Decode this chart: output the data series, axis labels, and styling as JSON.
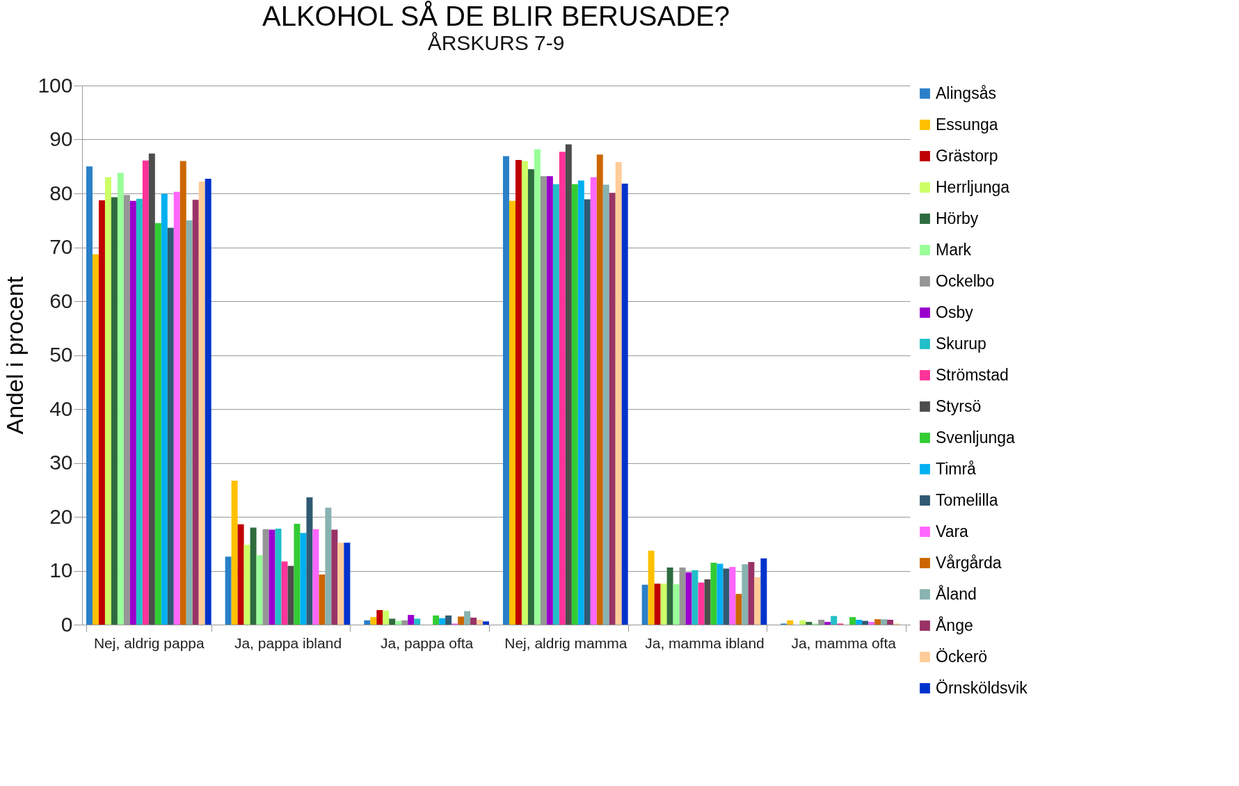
{
  "chart_data": {
    "type": "bar",
    "title": "ALKOHOL SÅ DE BLIR BERUSADE?",
    "subtitle": "ÅRSKURS 7-9",
    "ylabel": "Andel i procent",
    "categories": [
      "Nej, aldrig pappa",
      "Ja, pappa ibland",
      "Ja, pappa ofta",
      "Nej, aldrig mamma",
      "Ja, mamma ibland",
      "Ja, mamma ofta"
    ],
    "ylim": [
      0,
      100
    ],
    "yticks": [
      0,
      10,
      20,
      30,
      40,
      50,
      60,
      70,
      80,
      90,
      100
    ],
    "grid": "y",
    "legend": "right",
    "series": [
      {
        "name": "Alingsås",
        "color": "#2a80c8",
        "values": [
          85,
          12.6,
          0.8,
          86.9,
          7.4,
          0.2
        ]
      },
      {
        "name": "Essunga",
        "color": "#ffc000",
        "values": [
          68.7,
          26.7,
          1.4,
          78.6,
          13.7,
          0.8
        ]
      },
      {
        "name": "Grästorp",
        "color": "#c00000",
        "values": [
          78.7,
          18.6,
          2.7,
          86.2,
          7.6,
          0
        ]
      },
      {
        "name": "Herrljunga",
        "color": "#ccff66",
        "values": [
          83,
          14.8,
          2.6,
          86,
          7.6,
          0.8
        ]
      },
      {
        "name": "Hörby",
        "color": "#2e6b3e",
        "values": [
          79.3,
          18,
          1.1,
          84.5,
          10.6,
          0.5
        ]
      },
      {
        "name": "Mark",
        "color": "#99ff99",
        "values": [
          83.8,
          12.9,
          0.7,
          88.2,
          7.5,
          0.2
        ]
      },
      {
        "name": "Ockelbo",
        "color": "#969696",
        "values": [
          79.7,
          17.7,
          0.8,
          83.2,
          10.6,
          0.9
        ]
      },
      {
        "name": "Osby",
        "color": "#9900cc",
        "values": [
          78.6,
          17.6,
          1.8,
          83.2,
          9.7,
          0.5
        ]
      },
      {
        "name": "Skurup",
        "color": "#22bfc8",
        "values": [
          79,
          17.8,
          1.1,
          81.7,
          10.1,
          1.6
        ]
      },
      {
        "name": "Strömstad",
        "color": "#ff3399",
        "values": [
          86.1,
          11.7,
          0,
          87.7,
          7.8,
          0.2
        ]
      },
      {
        "name": "Styrsö",
        "color": "#4d4d4d",
        "values": [
          87.4,
          10.9,
          0,
          89.1,
          8.4,
          0
        ]
      },
      {
        "name": "Svenljunga",
        "color": "#33cc33",
        "values": [
          74.5,
          18.7,
          1.7,
          81.7,
          11.5,
          1.4
        ]
      },
      {
        "name": "Timrå",
        "color": "#00b0f0",
        "values": [
          79.9,
          17,
          1.2,
          82.4,
          11.3,
          0.9
        ]
      },
      {
        "name": "Tomelilla",
        "color": "#305a72",
        "values": [
          73.6,
          23.6,
          1.7,
          78.9,
          10.4,
          0.7
        ]
      },
      {
        "name": "Vara",
        "color": "#ff66ff",
        "values": [
          80.3,
          17.7,
          0.2,
          83,
          10.7,
          0.5
        ]
      },
      {
        "name": "Vårgårda",
        "color": "#cc6600",
        "values": [
          86,
          9.3,
          1.5,
          87.2,
          5.7,
          1
        ]
      },
      {
        "name": "Åland",
        "color": "#88b3b0",
        "values": [
          75,
          21.7,
          2.5,
          81.6,
          11.2,
          1
        ]
      },
      {
        "name": "Ånge",
        "color": "#993366",
        "values": [
          78.8,
          17.6,
          1.3,
          80.1,
          11.6,
          0.9
        ]
      },
      {
        "name": "Öckerö",
        "color": "#ffcc99",
        "values": [
          82.2,
          15.2,
          0.9,
          85.8,
          8.8,
          0.2
        ]
      },
      {
        "name": "Örnsköldsvik",
        "color": "#0033cc",
        "values": [
          82.7,
          15.2,
          0.6,
          81.8,
          12.3,
          0
        ]
      }
    ]
  }
}
